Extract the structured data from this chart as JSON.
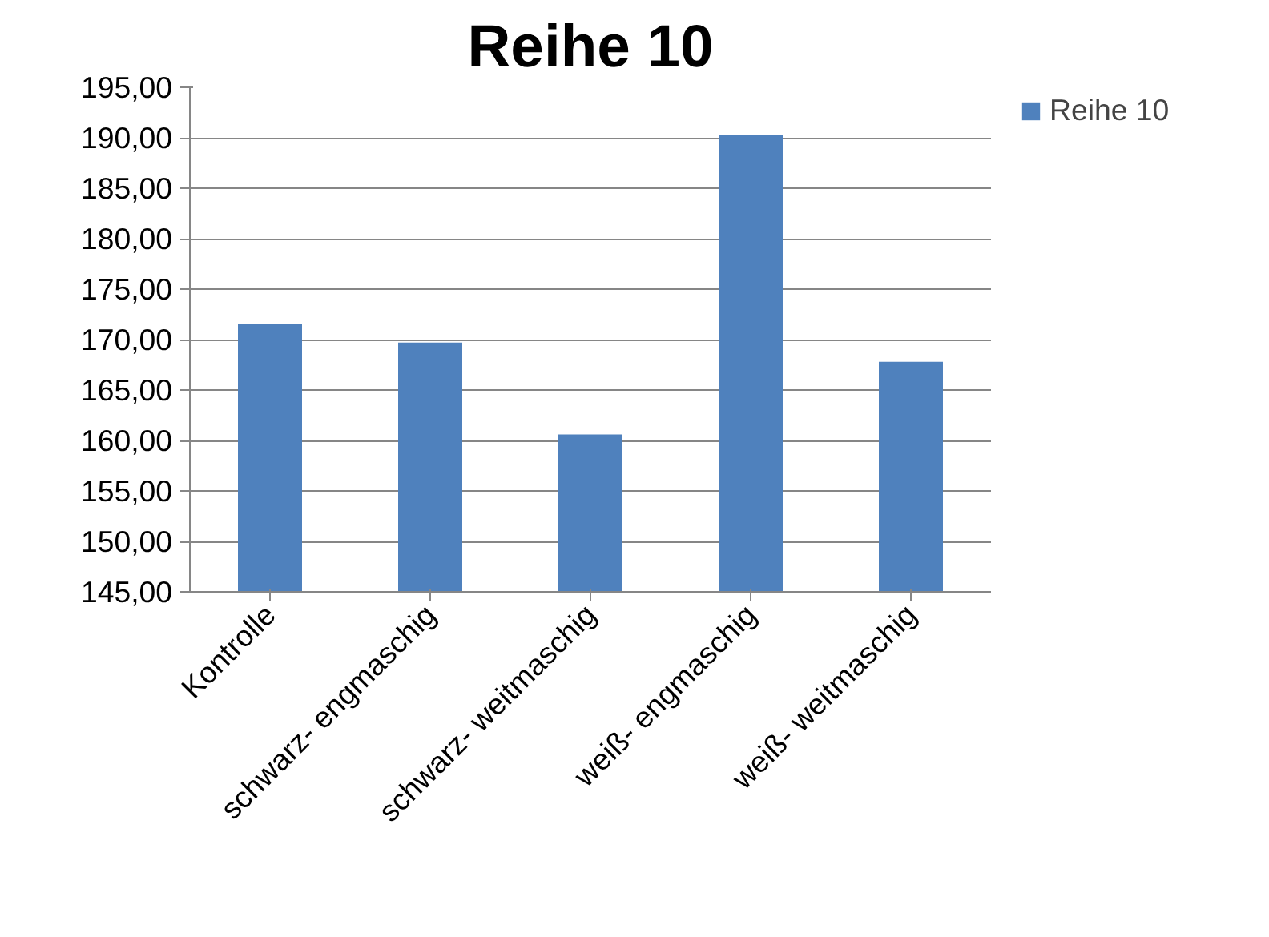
{
  "chart_data": {
    "type": "bar",
    "title": "Reihe 10",
    "categories": [
      "Kontrolle",
      "schwarz- engmaschig",
      "schwarz- weitmaschig",
      "weiß- engmaschig",
      "weiß- weitmaschig"
    ],
    "series": [
      {
        "name": "Reihe 10",
        "color": "#4f81bd",
        "values": [
          171.5,
          169.7,
          160.6,
          190.3,
          167.8
        ]
      }
    ],
    "ylim": [
      145,
      195
    ],
    "yticks": [
      {
        "value": 145,
        "label": "145,00"
      },
      {
        "value": 150,
        "label": "150,00"
      },
      {
        "value": 155,
        "label": "155,00"
      },
      {
        "value": 160,
        "label": "160,00"
      },
      {
        "value": 165,
        "label": "165,00"
      },
      {
        "value": 170,
        "label": "170,00"
      },
      {
        "value": 175,
        "label": "175,00"
      },
      {
        "value": 180,
        "label": "180,00"
      },
      {
        "value": 185,
        "label": "185,00"
      },
      {
        "value": 190,
        "label": "190,00"
      },
      {
        "value": 195,
        "label": "195,00"
      }
    ],
    "grid": "y",
    "legend": "right"
  }
}
